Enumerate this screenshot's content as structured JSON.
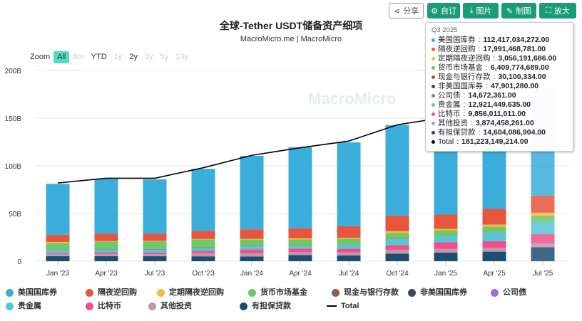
{
  "toolbar": {
    "share": "分享",
    "custom": "自订",
    "image": "图片",
    "draw": "制图",
    "expand": "放大"
  },
  "title": "全球-Tether USDT储备资产细项",
  "subtitle": "MacroMicro.me | MacroMicro",
  "watermark": "MacroMicro",
  "zoom": {
    "label": "Zoom",
    "options": [
      "All",
      "6m",
      "YTD",
      "1y",
      "2y",
      "3y",
      "5y",
      "10y"
    ],
    "active": "All",
    "enabled": [
      "All",
      "YTD",
      "2y"
    ]
  },
  "tooltip": {
    "period": "Q3 2025",
    "rows": [
      {
        "name": "美国国库券",
        "value": "112,417,034,272.00"
      },
      {
        "name": "隔夜逆回购",
        "value": "17,991,468,781.00"
      },
      {
        "name": "定期隔夜逆回购",
        "value": "3,056,191,686.00"
      },
      {
        "name": "货币市场基金",
        "value": "6,409,774,689.00"
      },
      {
        "name": "现金与银行存款",
        "value": "30,100,334.00"
      },
      {
        "name": "非美国国库券",
        "value": "47,901,280.00"
      },
      {
        "name": "公司债",
        "value": "14,672,361.00"
      },
      {
        "name": "贵金属",
        "value": "12,921,449,635.00"
      },
      {
        "name": "比特币",
        "value": "9,856,011,011.00"
      },
      {
        "name": "其他投资",
        "value": "3,874,458,261.00"
      },
      {
        "name": "有担保贷款",
        "value": "14,604,086,904.00"
      },
      {
        "name": "Total",
        "value": "181,223,149,214.00"
      }
    ]
  },
  "chart_data": {
    "type": "bar",
    "stacked": true,
    "title": "全球-Tether USDT储备资产细项",
    "ylim": [
      0,
      200
    ],
    "yticks": [
      "0",
      "50B",
      "100B",
      "150B",
      "200B"
    ],
    "categories": [
      "Jan '23",
      "Apr '23",
      "Jul '23",
      "Oct '23",
      "Jan '24",
      "Apr '24",
      "Jul '24",
      "Oct '24",
      "Jan '25",
      "Apr '25",
      "Jul '25"
    ],
    "unit": "B USD",
    "series": [
      {
        "name": "有担保贷款",
        "color": "#1b4f72",
        "values": [
          5.3,
          5.3,
          5.2,
          5.1,
          5.0,
          6.5,
          6.0,
          8.0,
          9.0,
          10.0,
          14.6
        ]
      },
      {
        "name": "其他投资",
        "color": "#c295a8",
        "values": [
          2.5,
          2.5,
          2.0,
          3.4,
          3.4,
          3.0,
          3.2,
          4.0,
          4.0,
          4.0,
          3.87
        ]
      },
      {
        "name": "比特币",
        "color": "#f0508a",
        "values": [
          1.0,
          1.5,
          1.7,
          2.3,
          4.0,
          3.8,
          4.0,
          5.0,
          7.0,
          7.0,
          9.86
        ]
      },
      {
        "name": "贵金属",
        "color": "#56c6d4",
        "values": [
          3.0,
          3.0,
          3.0,
          3.2,
          3.5,
          3.0,
          4.0,
          6.0,
          6.0,
          9.0,
          12.92
        ]
      },
      {
        "name": "公司债",
        "color": "#9c6ee0",
        "values": [
          0.1,
          0.1,
          0.6,
          0.1,
          0.1,
          0.1,
          0.1,
          0.1,
          0.1,
          0.1,
          0.015
        ]
      },
      {
        "name": "非美国国库券",
        "color": "#3a4660",
        "values": [
          0.1,
          0.1,
          0.1,
          0.1,
          0.1,
          0.1,
          0.1,
          0.1,
          0.1,
          0.1,
          0.048
        ]
      },
      {
        "name": "现金与银行存款",
        "color": "#8a5f52",
        "values": [
          0.2,
          0.2,
          0.2,
          0.3,
          0.3,
          0.3,
          0.2,
          0.3,
          0.2,
          0.2,
          0.03
        ]
      },
      {
        "name": "货币市场基金",
        "color": "#6cc966",
        "values": [
          7.0,
          7.9,
          8.0,
          8.3,
          6.3,
          6.0,
          6.0,
          6.0,
          6.0,
          6.0,
          6.41
        ]
      },
      {
        "name": "定期隔夜逆回购",
        "color": "#f5bc42",
        "values": [
          1.0,
          0.5,
          0.5,
          0.5,
          0.8,
          1.2,
          1.0,
          2.0,
          1.5,
          2.0,
          3.06
        ]
      },
      {
        "name": "隔夜逆回购",
        "color": "#e8553e",
        "values": [
          7.5,
          7.7,
          7.5,
          8.5,
          10.0,
          10.5,
          12.0,
          16.3,
          15.0,
          16.5,
          17.99
        ]
      },
      {
        "name": "美国国库券",
        "color": "#3badda",
        "values": [
          53.5,
          57.5,
          57.0,
          65.0,
          77.0,
          85.0,
          88.0,
          95.0,
          100.0,
          96.0,
          112.42
        ]
      }
    ],
    "line": {
      "name": "Total",
      "color": "#000000",
      "values": [
        82,
        87,
        87,
        98,
        111,
        119,
        126,
        143,
        151,
        152,
        181.2
      ]
    }
  }
}
